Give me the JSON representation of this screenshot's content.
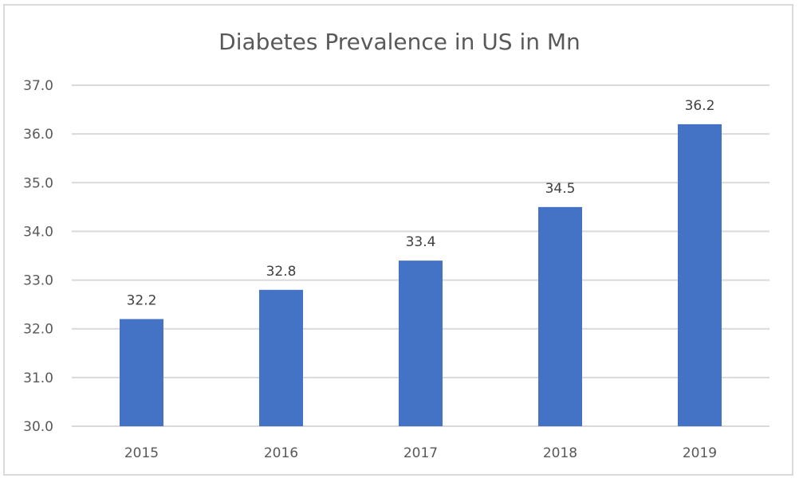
{
  "chart_data": {
    "type": "bar",
    "title": "Diabetes Prevalence in US in Mn",
    "xlabel": "",
    "ylabel": "",
    "categories": [
      "2015",
      "2016",
      "2017",
      "2018",
      "2019"
    ],
    "values": [
      32.2,
      32.8,
      33.4,
      34.5,
      36.2
    ],
    "data_labels": [
      "32.2",
      "32.8",
      "33.4",
      "34.5",
      "36.2"
    ],
    "ylim": [
      30.0,
      37.0
    ],
    "yticks": [
      "30.0",
      "31.0",
      "32.0",
      "33.0",
      "34.0",
      "35.0",
      "36.0",
      "37.0"
    ],
    "grid": true,
    "legend": "none",
    "colors": {
      "bar": "#4472c4",
      "grid": "#d9d9d9",
      "text": "#595959"
    }
  }
}
